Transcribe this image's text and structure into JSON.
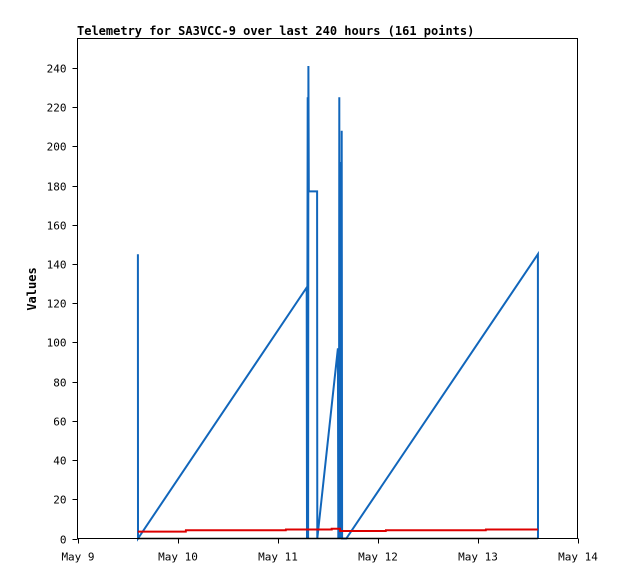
{
  "chart_data": {
    "type": "line",
    "title": "Telemetry for SA3VCC-9 over last 240 hours (161 points)",
    "xlabel": "",
    "ylabel": "Values",
    "x_ticks": [
      "May 9",
      "May 10",
      "May 11",
      "May 12",
      "May 13",
      "May 14"
    ],
    "xlim": [
      "2024-05-09T00:00",
      "2024-05-14T00:00"
    ],
    "ylim": [
      0,
      255
    ],
    "y_ticks": [
      0,
      20,
      40,
      60,
      80,
      100,
      120,
      140,
      160,
      180,
      200,
      220,
      240
    ],
    "grid": false,
    "series": [
      {
        "color": "#1166bb",
        "points": [
          [
            "2024-05-09T14:30",
            145
          ],
          [
            "2024-05-09T14:31",
            0
          ],
          [
            "2024-05-11T07:00",
            128
          ],
          [
            "2024-05-11T07:05",
            0
          ],
          [
            "2024-05-11T07:15",
            225
          ],
          [
            "2024-05-11T07:20",
            0
          ],
          [
            "2024-05-11T07:25",
            241
          ],
          [
            "2024-05-11T07:30",
            177
          ],
          [
            "2024-05-11T09:30",
            177
          ],
          [
            "2024-05-11T09:31",
            88
          ],
          [
            "2024-05-11T09:33",
            0
          ],
          [
            "2024-05-11T14:30",
            97
          ],
          [
            "2024-05-11T14:35",
            0
          ],
          [
            "2024-05-11T14:40",
            80
          ],
          [
            "2024-05-11T14:45",
            0
          ],
          [
            "2024-05-11T14:50",
            225
          ],
          [
            "2024-05-11T14:55",
            0
          ],
          [
            "2024-05-11T15:15",
            192
          ],
          [
            "2024-05-11T15:20",
            0
          ],
          [
            "2024-05-11T15:25",
            208
          ],
          [
            "2024-05-11T15:30",
            0
          ],
          [
            "2024-05-11T16:30",
            0
          ],
          [
            "2024-05-13T14:30",
            145
          ],
          [
            "2024-05-13T14:31",
            0
          ]
        ]
      },
      {
        "color": "#dd0000",
        "points": [
          [
            "2024-05-09T14:30",
            3.5
          ],
          [
            "2024-05-10T02:00",
            3.5
          ],
          [
            "2024-05-10T02:01",
            4.2
          ],
          [
            "2024-05-11T02:00",
            4.2
          ],
          [
            "2024-05-11T02:01",
            4.6
          ],
          [
            "2024-05-11T13:00",
            4.6
          ],
          [
            "2024-05-11T13:01",
            5.0
          ],
          [
            "2024-05-11T15:00",
            5.0
          ],
          [
            "2024-05-11T15:01",
            3.8
          ],
          [
            "2024-05-12T02:00",
            3.8
          ],
          [
            "2024-05-12T02:01",
            4.2
          ],
          [
            "2024-05-13T02:00",
            4.2
          ],
          [
            "2024-05-13T02:01",
            4.6
          ],
          [
            "2024-05-13T14:30",
            4.6
          ]
        ]
      },
      {
        "color": "#000000",
        "points": [
          [
            "2024-05-09T14:30",
            0
          ],
          [
            "2024-05-13T14:30",
            0
          ]
        ]
      }
    ]
  }
}
